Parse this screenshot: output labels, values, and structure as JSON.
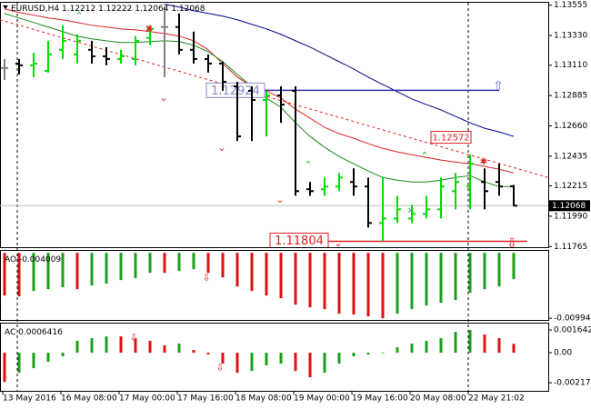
{
  "chart_data": [
    {
      "type": "ohlc",
      "title": "EURUSD,H4",
      "quote": [
        1.12212,
        1.12222,
        1.12064,
        1.12068
      ],
      "categories": [
        "13 May 2016",
        null,
        null,
        null,
        "16 May 08:00",
        null,
        null,
        null,
        "17 May 00:00",
        null,
        null,
        null,
        "17 May 16:00",
        null,
        null,
        null,
        "18 May 08:00",
        null,
        null,
        null,
        "19 May 00:00",
        null,
        null,
        null,
        "19 May 16:00",
        null,
        null,
        null,
        "20 May 08:00",
        null,
        null,
        null,
        "22 May 21:02",
        null,
        null,
        null
      ],
      "open": [
        1.13089,
        1.13122,
        1.13109,
        1.13068,
        1.13224,
        1.1319,
        1.13224,
        1.13176,
        1.13156,
        1.13156,
        1.13312,
        1.13393,
        1.13393,
        1.13224,
        1.13156,
        1.13122,
        1.12953,
        1.1292,
        1.12852,
        1.12886,
        1.1292,
        1.1219,
        1.1219,
        1.1221,
        1.12244,
        1.1221,
        1.1194,
        1.11973,
        1.11973,
        1.12007,
        1.12041,
        1.12176,
        1.1221,
        1.12244,
        1.12244,
        1.12212
      ],
      "high": [
        1.13156,
        1.13156,
        1.13203,
        1.13291,
        1.13406,
        1.13339,
        1.13291,
        1.13244,
        1.13224,
        1.13325,
        1.13406,
        1.13541,
        1.13494,
        1.13359,
        1.1319,
        1.13136,
        1.12987,
        1.12953,
        1.1292,
        1.12953,
        1.12953,
        1.12244,
        1.12277,
        1.12311,
        1.12345,
        1.12277,
        1.12277,
        1.12142,
        1.12075,
        1.12142,
        1.12277,
        1.12311,
        1.12446,
        1.12345,
        1.12379,
        1.12222
      ],
      "low": [
        1.13001,
        1.13041,
        1.13021,
        1.13055,
        1.13156,
        1.13122,
        1.13122,
        1.13109,
        1.13122,
        1.13109,
        1.13258,
        1.13021,
        1.1319,
        1.13122,
        1.13055,
        1.1292,
        1.12548,
        1.12548,
        1.12582,
        1.12683,
        1.12142,
        1.12142,
        1.12142,
        1.12176,
        1.12142,
        1.11906,
        1.11805,
        1.1194,
        1.1194,
        1.11973,
        1.11973,
        1.12041,
        1.12041,
        1.12041,
        1.12142,
        1.12064
      ],
      "close": [
        1.13089,
        1.13109,
        1.13122,
        1.1319,
        1.13291,
        1.13291,
        1.13176,
        1.13156,
        1.13176,
        1.13291,
        1.13379,
        1.13393,
        1.13224,
        1.13156,
        1.13122,
        1.12987,
        1.12582,
        1.12852,
        1.12886,
        1.12818,
        1.12176,
        1.12176,
        1.1221,
        1.12277,
        1.1221,
        1.1194,
        1.11973,
        1.12041,
        1.12007,
        1.12041,
        1.1221,
        1.12244,
        1.12379,
        1.12176,
        1.1221,
        1.12068
      ],
      "up_color": "#00dd00",
      "down_color": "#000000",
      "flat_color": "#808080",
      "lines": [
        {
          "color": "#00008b",
          "values": [
            null,
            null,
            null,
            null,
            null,
            null,
            null,
            null,
            null,
            null,
            null,
            1.13562,
            1.13541,
            1.13514,
            1.13494,
            1.13474,
            1.13447,
            1.13413,
            1.13379,
            1.13339,
            1.13291,
            1.13244,
            1.1319,
            1.13136,
            1.13082,
            1.13021,
            1.12967,
            1.12913,
            1.12859,
            1.12818,
            1.12778,
            1.1273,
            1.12683,
            1.12642,
            1.12615,
            1.12582
          ]
        },
        {
          "color": "#dd2222",
          "values": [
            1.13528,
            1.13501,
            1.13481,
            1.1346,
            1.13447,
            1.13427,
            1.13406,
            1.13393,
            1.13379,
            1.13372,
            1.13359,
            1.13345,
            1.13325,
            1.13291,
            1.13224,
            1.13122,
            1.13021,
            1.12953,
            1.1292,
            1.12866,
            1.12784,
            1.12717,
            1.12649,
            1.12602,
            1.12568,
            1.12528,
            1.12494,
            1.12467,
            1.12446,
            1.12426,
            1.12406,
            1.12392,
            1.12379,
            1.12359,
            1.12338,
            1.12311
          ]
        },
        {
          "color": "#1a8a1a",
          "values": [
            1.13494,
            1.1346,
            1.13427,
            1.13393,
            1.13359,
            1.13325,
            1.13305,
            1.13291,
            1.13278,
            1.13278,
            1.13285,
            1.13291,
            1.13285,
            1.13258,
            1.1321,
            1.13136,
            1.13041,
            1.12953,
            1.12866,
            1.12798,
            1.12683,
            1.12582,
            1.12501,
            1.12433,
            1.12379,
            1.12325,
            1.12277,
            1.12257,
            1.12244,
            1.12244,
            1.12257,
            1.12277,
            1.12291,
            1.12244,
            1.1221,
            1.1221
          ]
        }
      ],
      "trendline": {
        "color": "#dd2222",
        "values": [
          1.13447,
          1.12277
        ]
      },
      "levels": [
        {
          "value": 1.12924,
          "color": "#3333aa"
        },
        {
          "value": 1.11804,
          "color": "#dd2222"
        },
        {
          "value": 1.12572,
          "color": "#dd2222"
        }
      ],
      "ylim": [
        1.1176,
        1.1358
      ],
      "yticks": [
        1.13555,
        {
          "value": 1.1333,
          "label": "1.13330"
        },
        {
          "value": 1.1311,
          "label": "1.13110"
        },
        1.12885,
        {
          "value": 1.1266,
          "label": "1.12660"
        },
        1.12435,
        1.12215,
        {
          "value": 1.1199,
          "label": "1.11990"
        },
        1.11765
      ]
    },
    {
      "type": "bar",
      "title": "AO",
      "current": -0.004009,
      "up_color": "#1aa01a",
      "down_color": "#dd1111",
      "values": [
        -0.00649,
        -0.00662,
        -0.0058,
        -0.00552,
        -0.00524,
        -0.00552,
        -0.00497,
        -0.00469,
        -0.00414,
        -0.00386,
        -0.00304,
        -0.00304,
        -0.00276,
        -0.00248,
        -0.00304,
        -0.00373,
        -0.00511,
        -0.0058,
        -0.00649,
        -0.0069,
        -0.00787,
        -0.00828,
        -0.00856,
        -0.00925,
        -0.00938,
        -0.00966,
        -0.009943,
        -0.00925,
        -0.00856,
        -0.00801,
        -0.00759,
        -0.00718,
        -0.00607,
        -0.00552,
        -0.00511,
        -0.004009
      ],
      "ylim": [
        -0.0102,
        0.0003
      ],
      "yticks": [
        -0.009943
      ]
    },
    {
      "type": "bar",
      "title": "AC",
      "current": 0.0006416,
      "up_color": "#1aa01a",
      "down_color": "#dd1111",
      "values": [
        -0.00211,
        -0.00145,
        -0.00112,
        -0.00066,
        -0.00026,
        0.00086,
        0.00105,
        0.00118,
        0.00118,
        0.00105,
        0.00086,
        0.00053,
        0.00066,
        0.0002,
        -0.00013,
        -0.00079,
        -0.00145,
        -0.00132,
        -0.00092,
        -0.00079,
        -0.00132,
        -0.00178,
        -0.00145,
        -0.00079,
        -0.00026,
        -0.00013,
        -5e-05,
        0.00039,
        0.00066,
        0.00086,
        0.00105,
        0.00151,
        0.00164,
        0.00132,
        0.00105,
        0.0006416
      ],
      "ylim": [
        -0.00276,
        0.00211
      ],
      "yticks": [
        0.001642,
        {
          "value": 0,
          "label": "0.00"
        },
        -0.002174
      ]
    }
  ]
}
